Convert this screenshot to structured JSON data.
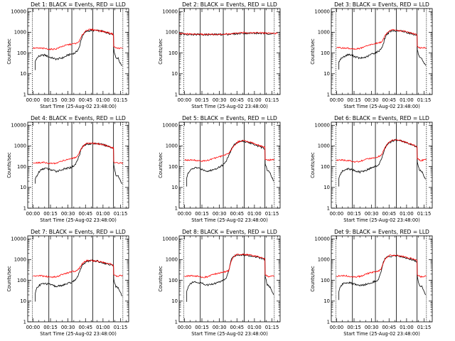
{
  "chart_data": {
    "type": "line",
    "x_tick_labels": [
      "00:00",
      "00:15",
      "00:30",
      "00:45",
      "01:00",
      "01:15"
    ],
    "x_tick_minutes": [
      0,
      15,
      30,
      45,
      60,
      75
    ],
    "x_range_minutes": [
      -4.5,
      82
    ],
    "y_scale": "log",
    "y_tick_labels": [
      "1",
      "10",
      "100",
      "1000",
      "10000"
    ],
    "ylim": [
      1,
      14000
    ],
    "grid": false,
    "xlabel": "Start Time (25-Aug-02 23:48:00)",
    "ylabel": "Counts/sec",
    "series_colors": {
      "events": "#000000",
      "lld": "#ff0000"
    },
    "vertical_markers_dotted_minutes": [
      -0.5,
      77
    ],
    "vertical_markers_solid_minutes": [
      13.6,
      33.3,
      51.3,
      69.0
    ],
    "panels": [
      {
        "title": "Det 1: BLACK = Events, RED = LLD",
        "events": {
          "x": [
            2,
            2,
            3,
            4,
            5,
            7,
            10,
            13.6,
            20,
            26,
            30,
            33,
            36,
            38,
            40,
            41,
            43,
            46,
            50,
            55,
            60,
            65,
            69,
            69.2,
            71,
            73,
            75,
            76.5
          ],
          "y": [
            15,
            40,
            55,
            60,
            70,
            75,
            80,
            65,
            50,
            60,
            80,
            90,
            100,
            130,
            200,
            400,
            800,
            1100,
            1250,
            1200,
            1100,
            900,
            800,
            150,
            60,
            55,
            30,
            25
          ]
        },
        "lld": {
          "x": [
            0,
            5,
            10,
            15,
            20,
            25,
            30,
            35,
            38,
            40,
            42,
            44,
            46,
            50,
            55,
            60,
            65,
            69,
            69.2,
            72,
            77
          ],
          "y": [
            170,
            170,
            165,
            150,
            160,
            210,
            250,
            280,
            300,
            400,
            700,
            1000,
            1300,
            1350,
            1250,
            1100,
            950,
            800,
            200,
            170,
            170
          ]
        }
      },
      {
        "title": "Det 2: BLACK = Events, RED = LLD",
        "events": {
          "x": [
            -4.5,
            0,
            10,
            20,
            30,
            40,
            50,
            60,
            70,
            76.5
          ],
          "y": [
            850,
            820,
            790,
            770,
            780,
            820,
            900,
            900,
            870,
            850
          ]
        },
        "lld": {
          "x": [
            -4.5,
            0,
            10,
            20,
            30,
            40,
            50,
            60,
            70,
            80
          ],
          "y": [
            860,
            840,
            800,
            790,
            790,
            840,
            950,
            960,
            920,
            880
          ]
        }
      },
      {
        "title": "Det 3: BLACK = Events, RED = LLD",
        "events": {
          "x": [
            2,
            2,
            3,
            4,
            5,
            7,
            10,
            13.6,
            20,
            26,
            30,
            33,
            36,
            38,
            40,
            41,
            43,
            46,
            50,
            55,
            60,
            65,
            69,
            69.2,
            71,
            73,
            75,
            76.5
          ],
          "y": [
            15,
            35,
            50,
            55,
            60,
            70,
            85,
            75,
            55,
            65,
            90,
            100,
            120,
            160,
            250,
            450,
            800,
            1100,
            1200,
            1150,
            1000,
            850,
            700,
            140,
            60,
            50,
            30,
            25
          ]
        },
        "lld": {
          "x": [
            0,
            5,
            10,
            15,
            20,
            25,
            30,
            35,
            38,
            40,
            42,
            44,
            46,
            50,
            55,
            60,
            65,
            69,
            69.2,
            72,
            77
          ],
          "y": [
            180,
            175,
            170,
            155,
            165,
            210,
            260,
            300,
            330,
            450,
            750,
            1050,
            1300,
            1300,
            1200,
            1050,
            900,
            750,
            200,
            175,
            180
          ]
        }
      },
      {
        "title": "Det 4: BLACK = Events, RED = LLD",
        "events": {
          "x": [
            2,
            2,
            3,
            4,
            5,
            7,
            10,
            13.6,
            20,
            26,
            30,
            33,
            36,
            38,
            40,
            41,
            43,
            46,
            50,
            55,
            60,
            65,
            69,
            69.2,
            71,
            73,
            75,
            76.5
          ],
          "y": [
            15,
            25,
            35,
            40,
            55,
            70,
            85,
            75,
            60,
            75,
            85,
            95,
            120,
            200,
            400,
            700,
            1000,
            1200,
            1300,
            1300,
            1150,
            950,
            750,
            120,
            40,
            35,
            20,
            15
          ]
        },
        "lld": {
          "x": [
            0,
            5,
            10,
            15,
            20,
            25,
            30,
            35,
            38,
            40,
            42,
            44,
            46,
            50,
            55,
            60,
            65,
            69,
            69.2,
            72,
            77
          ],
          "y": [
            150,
            155,
            160,
            140,
            150,
            190,
            230,
            260,
            300,
            500,
            800,
            1100,
            1300,
            1350,
            1300,
            1150,
            950,
            800,
            170,
            150,
            155
          ]
        }
      },
      {
        "title": "Det 5: BLACK = Events, RED = LLD",
        "events": {
          "x": [
            2,
            2,
            3,
            4,
            5,
            7,
            10,
            13.6,
            20,
            26,
            30,
            33,
            36,
            38,
            40,
            41,
            43,
            46,
            50,
            55,
            60,
            65,
            69,
            69.2,
            71,
            73,
            75,
            76.5
          ],
          "y": [
            12,
            30,
            45,
            55,
            65,
            80,
            90,
            80,
            60,
            75,
            100,
            120,
            200,
            350,
            600,
            900,
            1200,
            1500,
            1700,
            1500,
            1200,
            900,
            750,
            140,
            70,
            55,
            30,
            20
          ]
        },
        "lld": {
          "x": [
            0,
            5,
            10,
            15,
            20,
            25,
            30,
            35,
            38,
            40,
            42,
            44,
            46,
            50,
            55,
            60,
            65,
            69,
            69.2,
            72,
            77
          ],
          "y": [
            210,
            210,
            200,
            185,
            200,
            250,
            300,
            380,
            450,
            650,
            950,
            1250,
            1600,
            1800,
            1600,
            1300,
            1000,
            850,
            230,
            210,
            220
          ]
        }
      },
      {
        "title": "Det 6: BLACK = Events, RED = LLD",
        "events": {
          "x": [
            2,
            2,
            3,
            4,
            5,
            7,
            10,
            13.6,
            20,
            26,
            30,
            33,
            36,
            38,
            40,
            41,
            43,
            46,
            50,
            55,
            60,
            65,
            69,
            69.2,
            71,
            73,
            75,
            76.5
          ],
          "y": [
            12,
            28,
            40,
            50,
            60,
            70,
            80,
            70,
            55,
            70,
            90,
            100,
            120,
            200,
            400,
            700,
            1100,
            1500,
            1900,
            1800,
            1400,
            1100,
            900,
            150,
            70,
            60,
            35,
            25
          ]
        },
        "lld": {
          "x": [
            0,
            5,
            10,
            15,
            20,
            25,
            30,
            35,
            38,
            40,
            42,
            44,
            46,
            50,
            55,
            60,
            65,
            69,
            69.2,
            72,
            77
          ],
          "y": [
            200,
            210,
            200,
            170,
            180,
            220,
            260,
            300,
            350,
            550,
            900,
            1300,
            1700,
            2000,
            1800,
            1450,
            1150,
            950,
            240,
            200,
            220
          ]
        }
      },
      {
        "title": "Det 7: BLACK = Events, RED = LLD",
        "events": {
          "x": [
            2,
            2,
            3,
            4,
            5,
            7,
            10,
            13.6,
            20,
            26,
            30,
            33,
            36,
            38,
            40,
            41,
            43,
            46,
            50,
            55,
            60,
            65,
            69,
            69.2,
            71,
            73,
            75,
            76.5
          ],
          "y": [
            10,
            25,
            40,
            50,
            55,
            65,
            70,
            65,
            50,
            60,
            70,
            80,
            100,
            150,
            250,
            400,
            600,
            800,
            900,
            850,
            700,
            600,
            500,
            110,
            50,
            45,
            25,
            18
          ]
        },
        "lld": {
          "x": [
            0,
            5,
            10,
            15,
            20,
            25,
            30,
            35,
            38,
            40,
            42,
            44,
            46,
            50,
            55,
            60,
            65,
            69,
            69.2,
            72,
            77
          ],
          "y": [
            160,
            165,
            160,
            140,
            150,
            190,
            230,
            270,
            300,
            400,
            600,
            800,
            900,
            900,
            850,
            750,
            650,
            550,
            180,
            160,
            170
          ]
        }
      },
      {
        "title": "Det 8: BLACK = Events, RED = LLD",
        "events": {
          "x": [
            2,
            2,
            3,
            4,
            5,
            7,
            10,
            13.6,
            20,
            26,
            30,
            33,
            36,
            38,
            40,
            41,
            43,
            46,
            50,
            55,
            60,
            65,
            69,
            69.2,
            71,
            73,
            75,
            76.5
          ],
          "y": [
            10,
            30,
            45,
            60,
            70,
            80,
            85,
            75,
            60,
            70,
            85,
            100,
            130,
            300,
            900,
            1300,
            1500,
            1700,
            1700,
            1600,
            1400,
            1200,
            1000,
            160,
            60,
            50,
            30,
            20
          ]
        },
        "lld": {
          "x": [
            0,
            5,
            10,
            15,
            20,
            25,
            30,
            35,
            38,
            40,
            42,
            44,
            46,
            50,
            55,
            60,
            65,
            69,
            69.2,
            72,
            77
          ],
          "y": [
            160,
            170,
            160,
            140,
            150,
            190,
            230,
            260,
            300,
            800,
            1300,
            1600,
            1800,
            1800,
            1700,
            1500,
            1300,
            1100,
            180,
            150,
            160
          ]
        }
      },
      {
        "title": "Det 9: BLACK = Events, RED = LLD",
        "events": {
          "x": [
            2,
            2,
            3,
            4,
            5,
            7,
            10,
            13.6,
            20,
            26,
            30,
            33,
            36,
            38,
            40,
            41,
            43,
            46,
            50,
            55,
            60,
            65,
            69,
            69.2,
            71,
            73,
            75,
            76.5
          ],
          "y": [
            12,
            30,
            45,
            55,
            65,
            75,
            80,
            70,
            55,
            65,
            80,
            90,
            110,
            250,
            700,
            1000,
            1300,
            1400,
            1500,
            1400,
            1200,
            1000,
            800,
            140,
            60,
            50,
            30,
            20
          ]
        },
        "lld": {
          "x": [
            0,
            5,
            10,
            15,
            20,
            25,
            30,
            35,
            38,
            40,
            42,
            44,
            46,
            50,
            55,
            60,
            65,
            69,
            69.2,
            72,
            77
          ],
          "y": [
            160,
            170,
            160,
            145,
            155,
            200,
            240,
            280,
            320,
            700,
            1100,
            1400,
            1600,
            1600,
            1500,
            1300,
            1100,
            900,
            180,
            150,
            160
          ]
        }
      }
    ]
  }
}
